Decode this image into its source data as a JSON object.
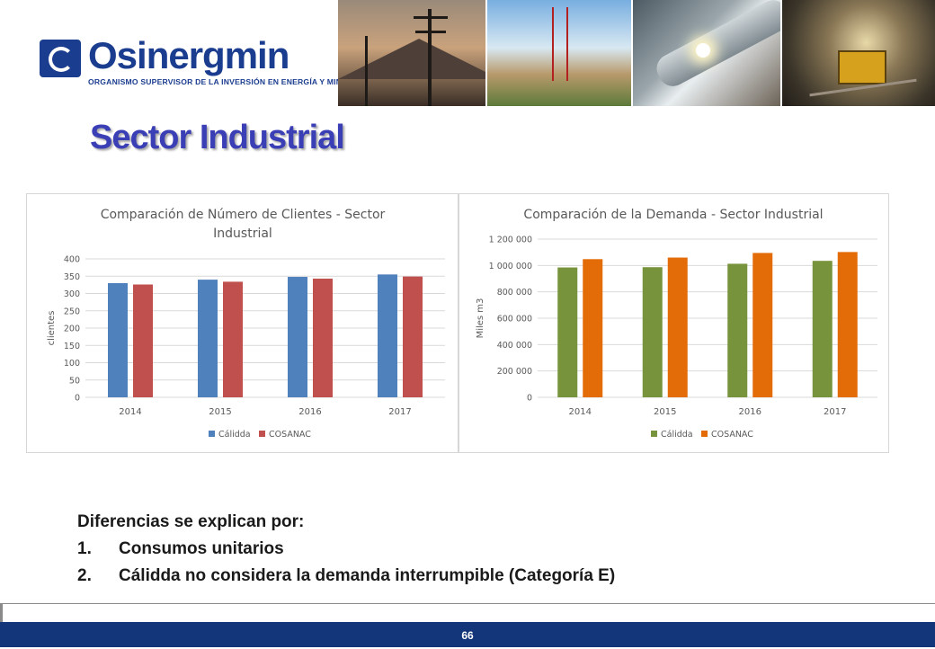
{
  "header": {
    "logo_name": "Osinergmin",
    "logo_subtitle": "ORGANISMO SUPERVISOR DE LA INVERSIÓN EN ENERGÍA Y MINERÍA",
    "photos": [
      "power-lines-photo",
      "drilling-rig-photo",
      "pipeline-welding-photo",
      "mining-tunnel-photo"
    ]
  },
  "slide": {
    "title": "Sector Industrial",
    "notes_heading": "Diferencias se explican por:",
    "notes_items": [
      {
        "num": "1.",
        "text": "Consumos unitarios"
      },
      {
        "num": "2.",
        "text": "Cálidda no considera la demanda interrumpible (Categoría E)"
      }
    ],
    "page_number": "66"
  },
  "colors": {
    "brand_blue": "#1b3d8f",
    "title_blue": "#3b3fb5",
    "footer_blue": "#13367a",
    "calidda_blue": "#4f81bd",
    "cosanac_red": "#c0504d",
    "calidda_green": "#77933c",
    "cosanac_orange": "#e36c09"
  },
  "chart_data": [
    {
      "type": "bar",
      "title_lines": [
        "Comparación de Número de Clientes - Sector",
        "Industrial"
      ],
      "ylabel": "clientes",
      "xlabel": "",
      "categories": [
        "2014",
        "2015",
        "2016",
        "2017"
      ],
      "series": [
        {
          "name": "Cálidda",
          "color": "#4f81bd",
          "values": [
            330,
            340,
            348,
            355
          ]
        },
        {
          "name": "COSANAC",
          "color": "#c0504d",
          "values": [
            326,
            334,
            343,
            349
          ]
        }
      ],
      "ylim": [
        0,
        400
      ],
      "yticks": [
        0,
        50,
        100,
        150,
        200,
        250,
        300,
        350,
        400
      ],
      "ytick_labels": [
        "0",
        "50",
        "100",
        "150",
        "200",
        "250",
        "300",
        "350",
        "400"
      ],
      "grid": true,
      "legend": "bottom"
    },
    {
      "type": "bar",
      "title_lines": [
        "Comparación de la Demanda - Sector Industrial"
      ],
      "ylabel": "Miles m3",
      "xlabel": "",
      "categories": [
        "2014",
        "2015",
        "2016",
        "2017"
      ],
      "series": [
        {
          "name": "Cálidda",
          "color": "#77933c",
          "values": [
            985000,
            987000,
            1013000,
            1035000
          ]
        },
        {
          "name": "COSANAC",
          "color": "#e36c09",
          "values": [
            1048000,
            1060000,
            1095000,
            1102000
          ]
        }
      ],
      "ylim": [
        0,
        1200000
      ],
      "yticks": [
        0,
        200000,
        400000,
        600000,
        800000,
        1000000,
        1200000
      ],
      "ytick_labels": [
        "0",
        "200 000",
        "400 000",
        "600 000",
        "800 000",
        "1 000 000",
        "1 200 000"
      ],
      "grid": true,
      "legend": "bottom"
    }
  ]
}
